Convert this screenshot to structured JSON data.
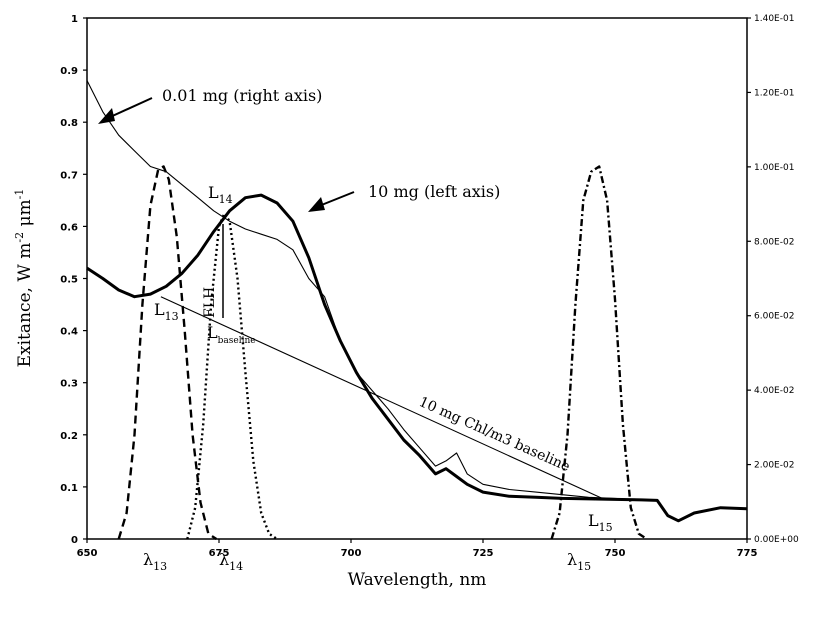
{
  "chart_data": {
    "type": "line",
    "xlabel": "Wavelength, nm",
    "ylabel_main": "Exitance, W m",
    "ylabel_sup1": "-2",
    "ylabel_mid": " μm",
    "ylabel_sup2": "-1",
    "xlim": [
      650,
      775
    ],
    "ylim": [
      0,
      1
    ],
    "y2lim": [
      0,
      0.14
    ],
    "x_ticks": [
      "650",
      "675",
      "700",
      "725",
      "750",
      "775"
    ],
    "y_ticks": [
      "0",
      "0.1",
      "0.2",
      "0.3",
      "0.4",
      "0.5",
      "0.6",
      "0.7",
      "0.8",
      "0.9",
      "1"
    ],
    "y2_ticks": [
      "0.00E+00",
      "2.00E-02",
      "4.00E-02",
      "6.00E-02",
      "8.00E-02",
      "1.00E-01",
      "1.20E-01",
      "1.40E-01"
    ],
    "grid": false,
    "series": [
      {
        "name": "10 mg (left axis)",
        "style": "thick",
        "x": [
          650,
          653,
          656,
          659,
          662,
          665,
          668,
          671,
          674,
          677,
          680,
          683,
          686,
          689,
          692,
          695,
          698,
          701,
          704,
          707,
          710,
          713,
          716,
          718,
          720,
          722,
          725,
          730,
          735,
          740,
          745,
          750,
          755,
          758,
          760,
          762,
          765,
          770,
          775
        ],
        "y": [
          0.52,
          0.5,
          0.478,
          0.465,
          0.47,
          0.485,
          0.51,
          0.545,
          0.59,
          0.63,
          0.655,
          0.66,
          0.645,
          0.61,
          0.54,
          0.45,
          0.38,
          0.32,
          0.27,
          0.23,
          0.19,
          0.16,
          0.125,
          0.135,
          0.12,
          0.105,
          0.09,
          0.082,
          0.08,
          0.078,
          0.077,
          0.076,
          0.075,
          0.074,
          0.045,
          0.035,
          0.05,
          0.06,
          0.058
        ]
      },
      {
        "name": "0.01 mg (right axis)",
        "style": "thin",
        "x": [
          650,
          653,
          656,
          659,
          662,
          665,
          668,
          671,
          674,
          677,
          680,
          683,
          686,
          689,
          692,
          695,
          698,
          701,
          704,
          707,
          710,
          713,
          716,
          718,
          720,
          722,
          725,
          730,
          735,
          740,
          745,
          750,
          755,
          758
        ],
        "y": [
          0.88,
          0.82,
          0.775,
          0.745,
          0.715,
          0.705,
          0.68,
          0.655,
          0.63,
          0.61,
          0.595,
          0.585,
          0.575,
          0.555,
          0.5,
          0.465,
          0.38,
          0.32,
          0.285,
          0.25,
          0.21,
          0.175,
          0.14,
          0.15,
          0.165,
          0.125,
          0.105,
          0.095,
          0.09,
          0.085,
          0.08,
          0.078,
          0.075,
          0.073
        ]
      },
      {
        "name": "λ13 band",
        "style": "dashed",
        "x": [
          656,
          657.5,
          659,
          660.5,
          662,
          663.5,
          664.5,
          665.5,
          667,
          668.5,
          670,
          671.5,
          673,
          674.5
        ],
        "y": [
          0,
          0.05,
          0.2,
          0.45,
          0.64,
          0.71,
          0.715,
          0.69,
          0.58,
          0.4,
          0.2,
          0.07,
          0.01,
          0
        ]
      },
      {
        "name": "λ14 band",
        "style": "dotted",
        "x": [
          669,
          670.5,
          672,
          673.5,
          675,
          676,
          677,
          678.5,
          680,
          681.5,
          683,
          684.5,
          686
        ],
        "y": [
          0,
          0.06,
          0.22,
          0.45,
          0.6,
          0.625,
          0.61,
          0.5,
          0.32,
          0.15,
          0.05,
          0.01,
          0
        ]
      },
      {
        "name": "λ15 band",
        "style": "dashdot",
        "x": [
          738,
          739.5,
          741,
          742.5,
          744,
          745.5,
          747,
          748.5,
          750,
          751.5,
          753,
          754.5,
          756
        ],
        "y": [
          0,
          0.05,
          0.2,
          0.45,
          0.65,
          0.705,
          0.715,
          0.65,
          0.46,
          0.22,
          0.06,
          0.01,
          0
        ]
      },
      {
        "name": "10 mg Chl/m3 baseline",
        "style": "thin",
        "x": [
          664,
          748
        ],
        "y": [
          0.465,
          0.076
        ]
      }
    ],
    "annotations": {
      "label_001": "0.01 mg (right axis)",
      "label_10": "10 mg (left axis)",
      "baseline": "10 mg Chl/m3 baseline",
      "flh": "FLH",
      "l13": "L",
      "l13_sub": "13",
      "l14": "L",
      "l14_sub": "14",
      "l15": "L",
      "l15_sub": "15",
      "lbase": "L",
      "lbase_sub": "baseline",
      "lam13": "λ",
      "lam13_sub": "13",
      "lam14": "λ",
      "lam14_sub": "14",
      "lam15": "λ",
      "lam15_sub": "15"
    }
  }
}
